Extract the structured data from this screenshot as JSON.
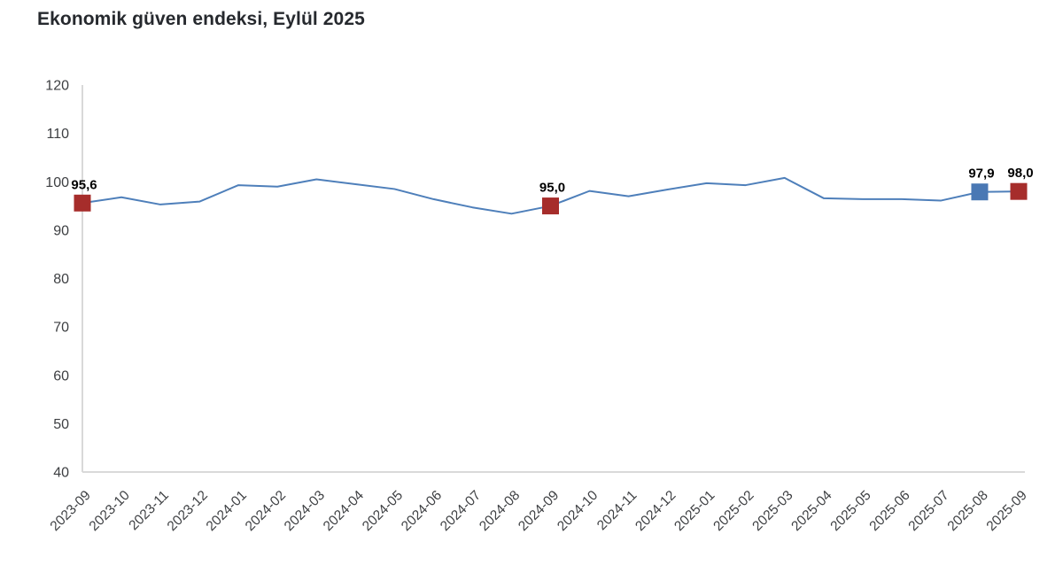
{
  "title": "Ekonomik güven endeksi, Eylül 2025",
  "chart_data": {
    "type": "line",
    "series_name": "Ekonomik güven endeksi",
    "x": [
      "2023-09",
      "2023-10",
      "2023-11",
      "2023-12",
      "2024-01",
      "2024-02",
      "2024-03",
      "2024-04",
      "2024-05",
      "2024-06",
      "2024-07",
      "2024-08",
      "2024-09",
      "2024-10",
      "2024-11",
      "2024-12",
      "2025-01",
      "2025-02",
      "2025-03",
      "2025-04",
      "2025-05",
      "2025-06",
      "2025-07",
      "2025-08",
      "2025-09"
    ],
    "values": [
      95.6,
      96.8,
      95.3,
      95.9,
      99.3,
      99.0,
      100.5,
      99.5,
      98.5,
      96.4,
      94.7,
      93.4,
      95.0,
      98.1,
      97.0,
      98.4,
      99.7,
      99.3,
      100.8,
      96.6,
      96.4,
      96.4,
      96.1,
      97.9,
      98.0
    ],
    "labeled_points": [
      {
        "x": "2023-09",
        "index": 0,
        "value": 95.6,
        "label": "95,6",
        "marker": "red"
      },
      {
        "x": "2024-09",
        "index": 12,
        "value": 95.0,
        "label": "95,0",
        "marker": "red"
      },
      {
        "x": "2025-08",
        "index": 23,
        "value": 97.9,
        "label": "97,9",
        "marker": "blue"
      },
      {
        "x": "2025-09",
        "index": 24,
        "value": 98.0,
        "label": "98,0",
        "marker": "red"
      }
    ],
    "ylim": [
      40,
      120
    ],
    "yticks": [
      40,
      50,
      60,
      70,
      80,
      90,
      100,
      110,
      120
    ],
    "grid": false,
    "legend": false,
    "x_label_rotation_deg": -45,
    "colors": {
      "line": "#4e7fba",
      "marker_red": "#a62d2b",
      "marker_blue": "#4a78b4",
      "axis": "#d9d9d9",
      "tick_text": "#3d3f42",
      "data_label_text": "#000000",
      "title_text": "#26292e"
    }
  }
}
